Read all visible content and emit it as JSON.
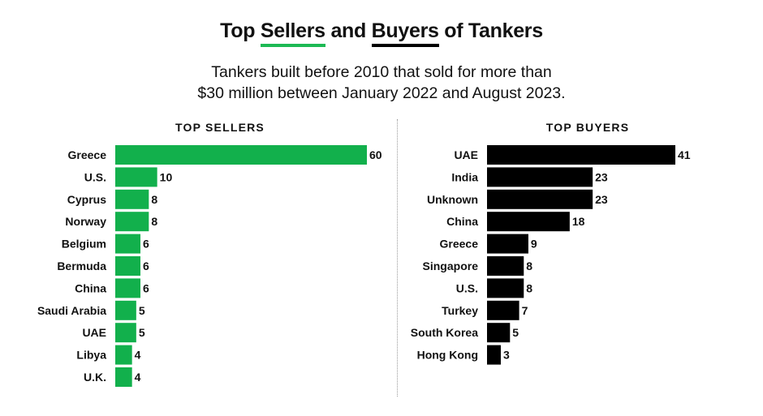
{
  "title": {
    "part1": "Top ",
    "sellers_word": "Sellers",
    "part2": " and ",
    "buyers_word": "Buyers",
    "part3": " of Tankers"
  },
  "subtitle": {
    "line1": "Tankers built before 2010 that sold for more than",
    "line2": "$30 million between January 2022 and August 2023."
  },
  "colors": {
    "sellers": "#12b04c",
    "buyers": "#000000"
  },
  "chart_data": [
    {
      "type": "bar",
      "orientation": "horizontal",
      "title": "TOP SELLERS",
      "categories": [
        "Greece",
        "U.S.",
        "Cyprus",
        "Norway",
        "Belgium",
        "Bermuda",
        "China",
        "Saudi Arabia",
        "UAE",
        "Libya",
        "U.K."
      ],
      "values": [
        60,
        10,
        8,
        8,
        6,
        6,
        6,
        5,
        5,
        4,
        4
      ],
      "color": "#12b04c"
    },
    {
      "type": "bar",
      "orientation": "horizontal",
      "title": "TOP BUYERS",
      "categories": [
        "UAE",
        "India",
        "Unknown",
        "China",
        "Greece",
        "Singapore",
        "U.S.",
        "Turkey",
        "South Korea",
        "Hong Kong"
      ],
      "values": [
        41,
        23,
        23,
        18,
        9,
        8,
        8,
        7,
        5,
        3
      ],
      "color": "#000000"
    }
  ]
}
